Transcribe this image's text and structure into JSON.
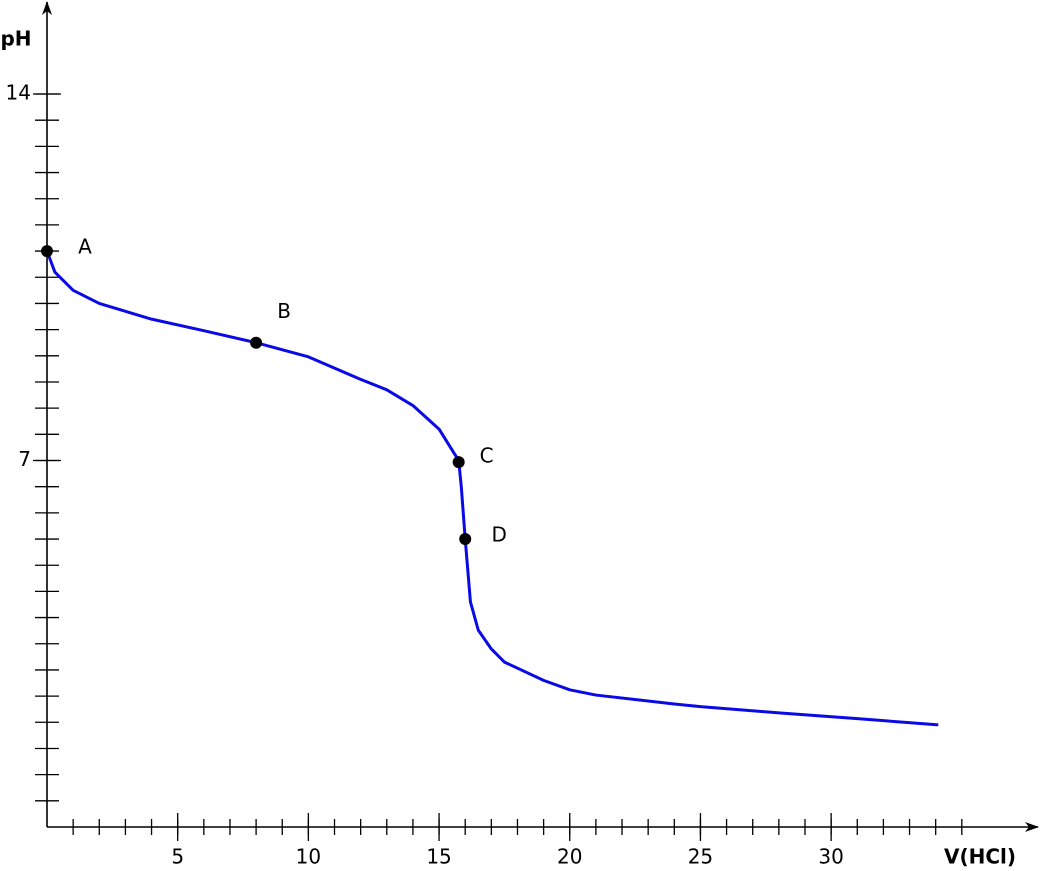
{
  "chart_data": {
    "type": "line",
    "x_label": "V(HCl)",
    "y_label": "pH",
    "xlim": [
      0,
      37.8
    ],
    "ylim": [
      0,
      15.7
    ],
    "xticks": [
      5,
      10,
      15,
      20,
      25,
      30
    ],
    "yticks": [
      7,
      14
    ],
    "x_minor_ticks": [
      1,
      2,
      3,
      4,
      5,
      6,
      7,
      8,
      9,
      10,
      11,
      12,
      13,
      14,
      15,
      16,
      17,
      18,
      19,
      20,
      21,
      22,
      23,
      24,
      25,
      26,
      27,
      28,
      29,
      30,
      31,
      32,
      33,
      34,
      35
    ],
    "y_minor_ticks": [
      0.5,
      1,
      1.5,
      2,
      2.5,
      3,
      3.5,
      4,
      4.5,
      5,
      5.5,
      6,
      6.5,
      7,
      7.5,
      8,
      8.5,
      9,
      9.5,
      10,
      10.5,
      11,
      11.5,
      12,
      12.5,
      13,
      13.5,
      14
    ],
    "series": [
      {
        "color": "#0a0ae6",
        "x": [
          0,
          0.3,
          1,
          2,
          4,
          6,
          8,
          10,
          12,
          13,
          14,
          15,
          15.5,
          15.75,
          15.85,
          16,
          16.2,
          16.5,
          17,
          17.5,
          19,
          20,
          21,
          24,
          25,
          28,
          31,
          34.1
        ],
        "values": [
          11.0,
          10.6,
          10.25,
          10.0,
          9.7,
          9.48,
          9.25,
          8.98,
          8.55,
          8.35,
          8.05,
          7.6,
          7.2,
          7.0,
          6.5,
          5.5,
          4.3,
          3.76,
          3.4,
          3.15,
          2.8,
          2.62,
          2.52,
          2.35,
          2.3,
          2.18,
          2.07,
          1.95
        ]
      }
    ],
    "points": [
      {
        "label": "A",
        "x": 0,
        "y": 11.0
      },
      {
        "label": "B",
        "x": 8,
        "y": 9.25
      },
      {
        "label": "C",
        "x": 15.75,
        "y": 6.97
      },
      {
        "label": "D",
        "x": 16,
        "y": 5.5
      }
    ]
  }
}
